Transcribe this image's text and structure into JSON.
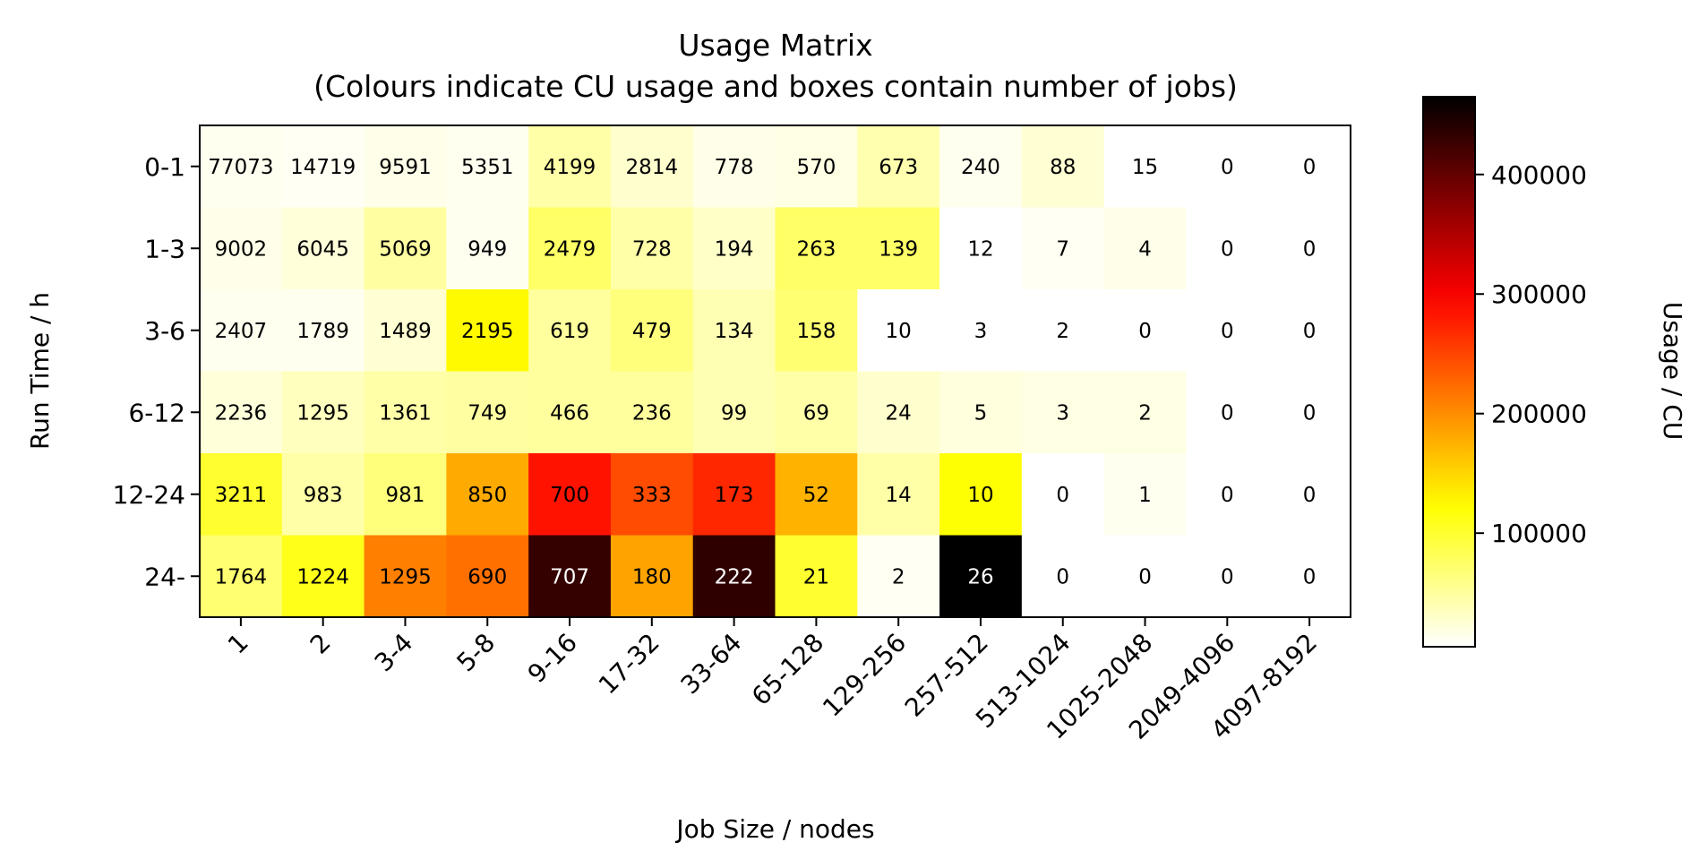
{
  "chart_data": {
    "type": "heatmap",
    "title": "Usage Matrix",
    "subtitle": "(Colours indicate CU usage and boxes contain number of jobs)",
    "xlabel": "Job Size / nodes",
    "ylabel": "Run Time / h",
    "colorbar_label": "Usage / CU",
    "colormap": "hot_r",
    "color_range": [
      5000,
      465000
    ],
    "colorbar_ticks": [
      100000,
      200000,
      300000,
      400000
    ],
    "colorbar_tick_labels": [
      "100000",
      "200000",
      "300000",
      "400000"
    ],
    "x_categories": [
      "1",
      "2",
      "3-4",
      "5-8",
      "9-16",
      "17-32",
      "33-64",
      "65-128",
      "129-256",
      "257-512",
      "513-1024",
      "1025-2048",
      "2049-4096",
      "4097-8192"
    ],
    "y_categories": [
      "0-1",
      "1-3",
      "3-6",
      "6-12",
      "12-24",
      "24-"
    ],
    "job_counts": [
      [
        "77073",
        "14719",
        "9591",
        "5351",
        "4199",
        "2814",
        "778",
        "570",
        "673",
        "240",
        "88",
        "15",
        "0",
        "0"
      ],
      [
        "9002",
        "6045",
        "5069",
        "949",
        "2479",
        "728",
        "194",
        "263",
        "139",
        "12",
        "7",
        "4",
        "0",
        "0"
      ],
      [
        "2407",
        "1789",
        "1489",
        "2195",
        "619",
        "479",
        "134",
        "158",
        "10",
        "3",
        "2",
        "0",
        "0",
        "0"
      ],
      [
        "2236",
        "1295",
        "1361",
        "749",
        "466",
        "236",
        "99",
        "69",
        "24",
        "5",
        "3",
        "2",
        "0",
        "0"
      ],
      [
        "3211",
        "983",
        "981",
        "850",
        "700",
        "333",
        "173",
        "52",
        "14",
        "10",
        "0",
        "1",
        "0",
        "0"
      ],
      [
        "1764",
        "1224",
        "1295",
        "690",
        "707",
        "180",
        "222",
        "21",
        "2",
        "26",
        "0",
        "0",
        "0",
        "0"
      ]
    ],
    "usage_cu": [
      [
        12000,
        10000,
        15000,
        12000,
        45000,
        28000,
        15000,
        18000,
        42000,
        12000,
        25000,
        5000,
        0,
        0
      ],
      [
        15000,
        22000,
        48000,
        12000,
        75000,
        45000,
        30000,
        75000,
        75000,
        5000,
        10000,
        15000,
        0,
        0
      ],
      [
        12000,
        12000,
        25000,
        125000,
        50000,
        65000,
        40000,
        70000,
        5000,
        5000,
        5000,
        0,
        0,
        0
      ],
      [
        22000,
        35000,
        45000,
        48000,
        50000,
        50000,
        40000,
        45000,
        28000,
        20000,
        18000,
        18000,
        0,
        0
      ],
      [
        100000,
        45000,
        65000,
        180000,
        285000,
        245000,
        270000,
        175000,
        45000,
        120000,
        0,
        12000,
        0,
        0
      ],
      [
        70000,
        110000,
        210000,
        220000,
        430000,
        185000,
        435000,
        100000,
        10000,
        465000,
        0,
        0,
        0,
        0
      ]
    ]
  }
}
